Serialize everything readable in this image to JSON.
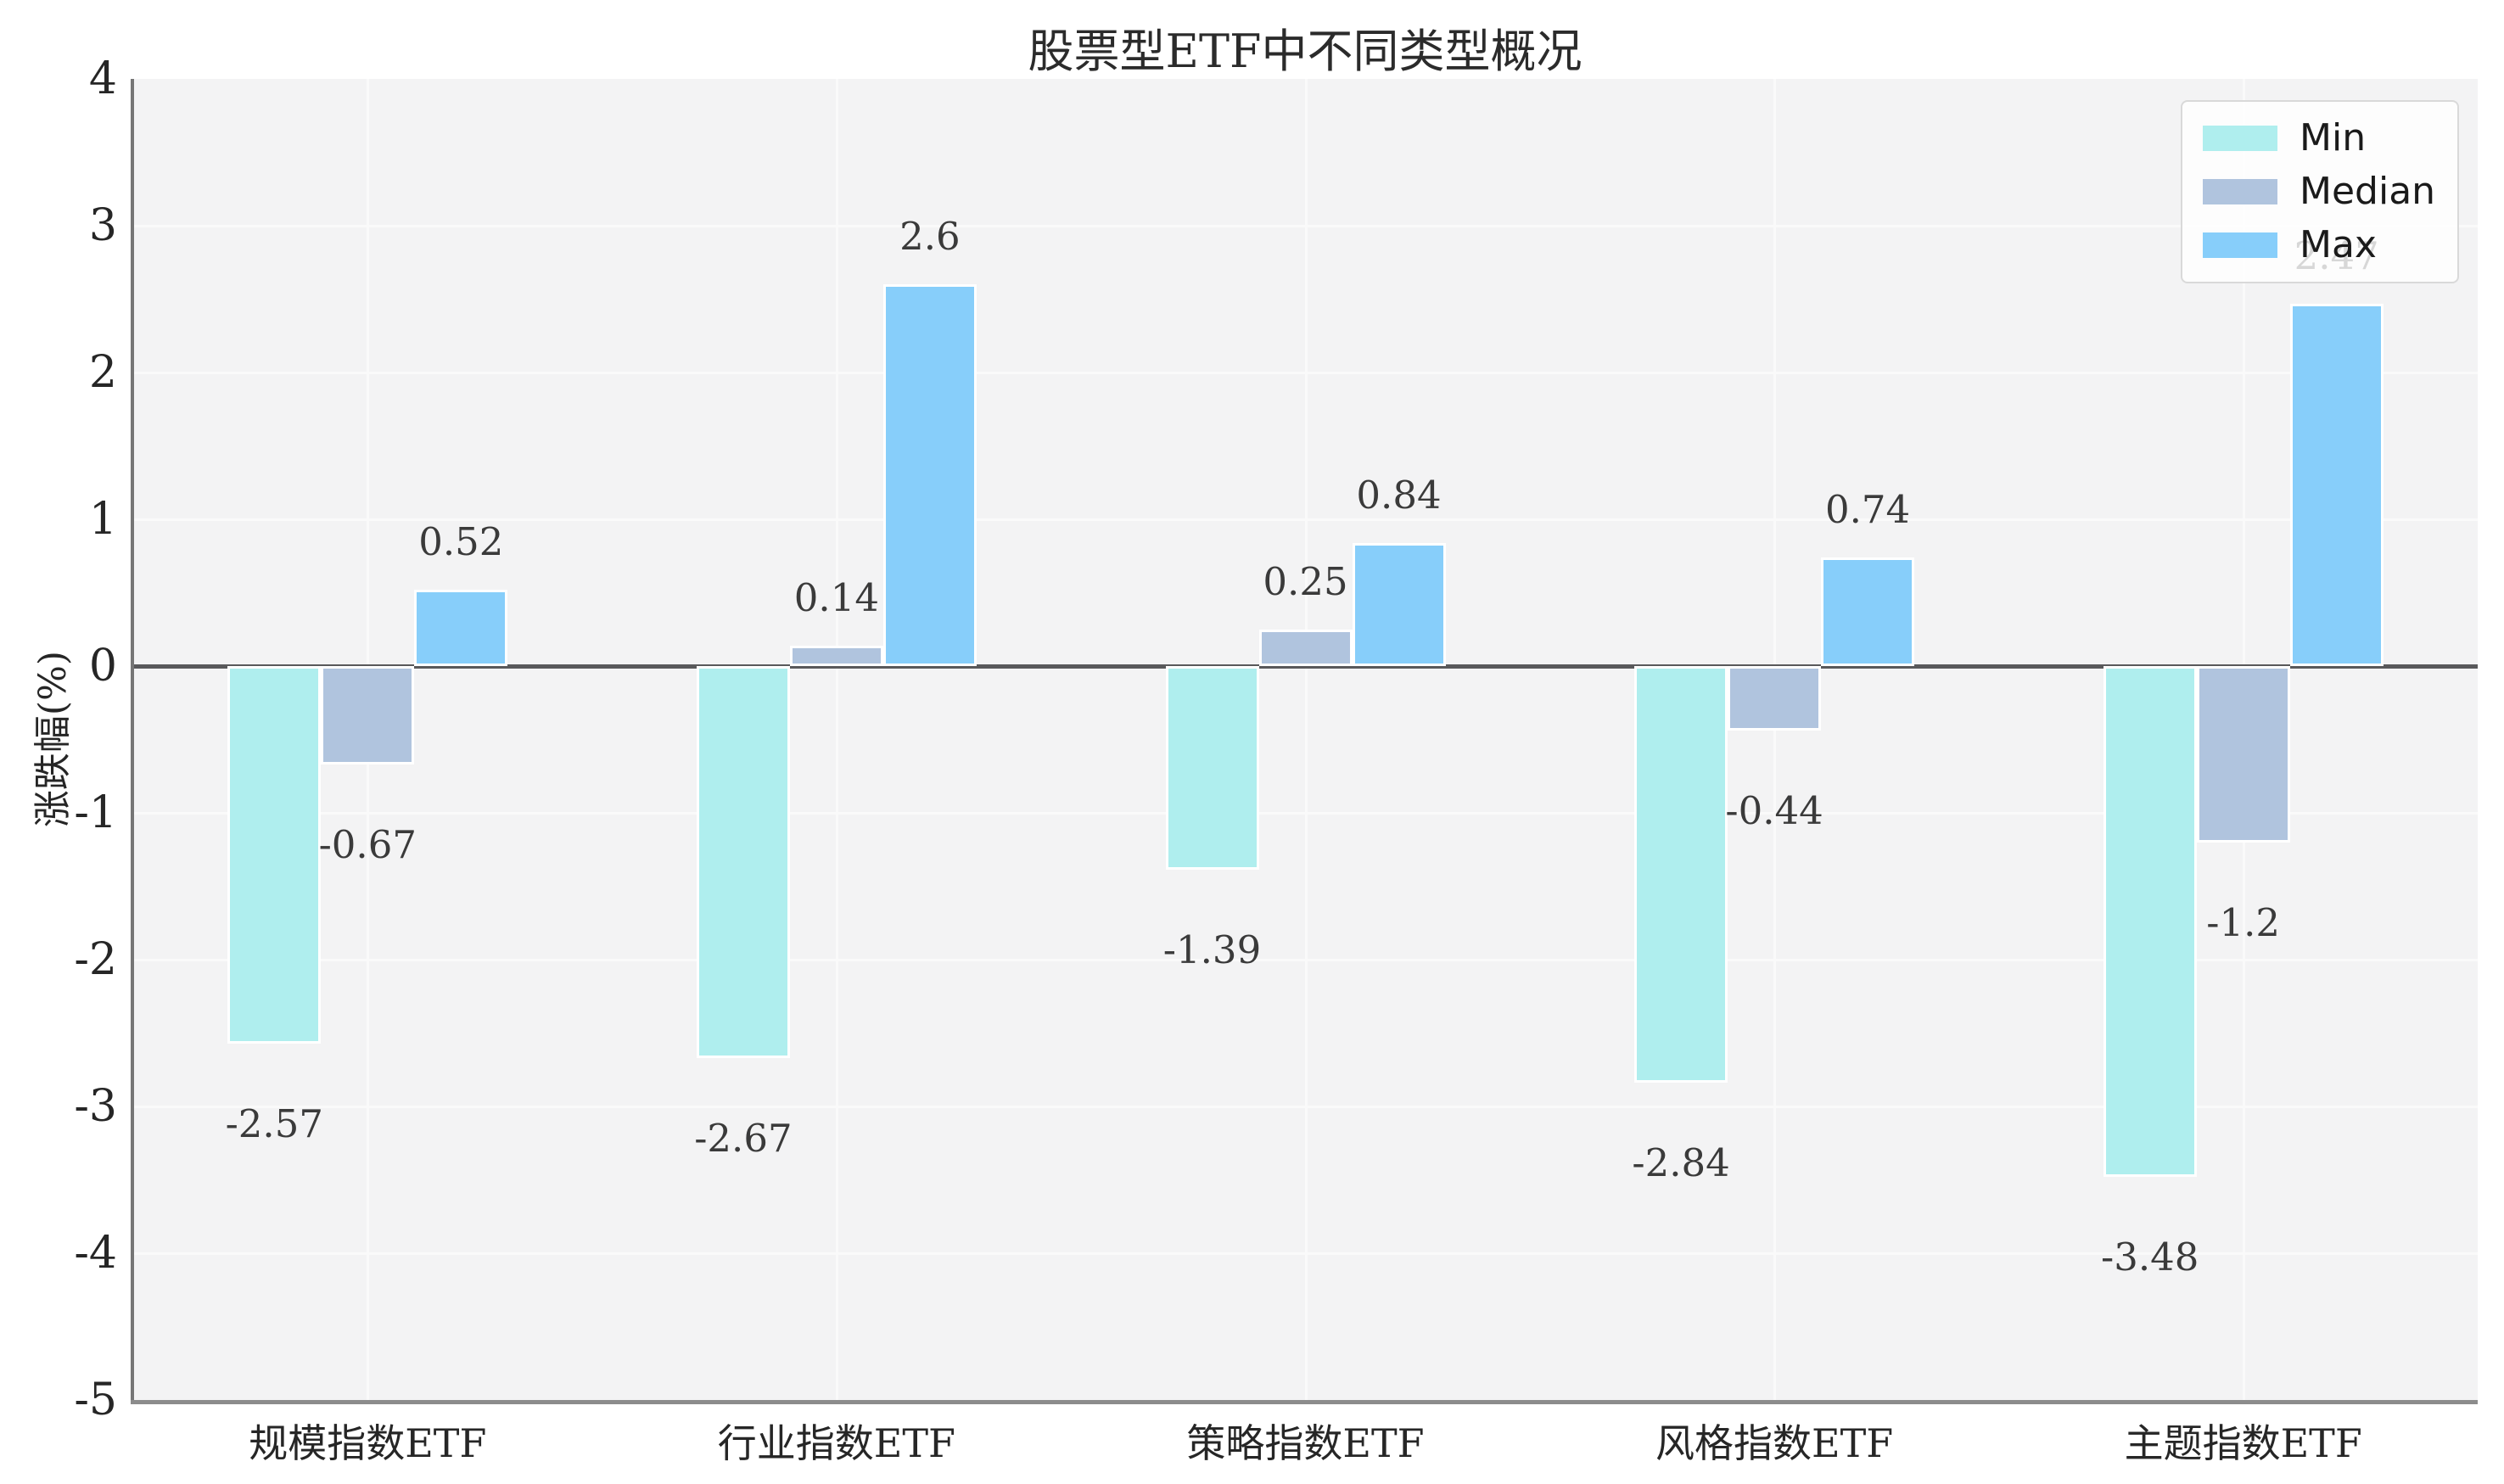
{
  "chart_data": {
    "type": "bar",
    "title": "股票型ETF中不同类型概况",
    "xlabel": "",
    "ylabel": "涨跌幅(%)",
    "categories": [
      "规模指数ETF",
      "行业指数ETF",
      "策略指数ETF",
      "风格指数ETF",
      "主题指数ETF"
    ],
    "series": [
      {
        "name": "Min",
        "color": "#AFEEEE",
        "values": [
          -2.57,
          -2.67,
          -1.39,
          -2.84,
          -3.48
        ],
        "labels": [
          "-2.57",
          "-2.67",
          "-1.39",
          "-2.84",
          "-3.48"
        ]
      },
      {
        "name": "Median",
        "color": "#B0C4DE",
        "values": [
          -0.67,
          0.14,
          0.25,
          -0.44,
          -1.2
        ],
        "labels": [
          "-0.67",
          "0.14",
          "0.25",
          "-0.44",
          "-1.2"
        ]
      },
      {
        "name": "Max",
        "color": "#87CEFA",
        "values": [
          0.52,
          2.6,
          0.84,
          0.74,
          2.47
        ],
        "labels": [
          "0.52",
          "2.6",
          "0.84",
          "0.74",
          "2.47"
        ]
      }
    ],
    "ylim": [
      -5,
      4
    ],
    "yticks": [
      "4",
      "3",
      "2",
      "1",
      "0",
      "-1",
      "-2",
      "-3",
      "-4",
      "-5"
    ],
    "grid": true,
    "zero_line": true,
    "legend": {
      "position": "upper right",
      "entries": [
        "Min",
        "Median",
        "Max"
      ]
    }
  },
  "style": {
    "figure_bg": "#ffffff",
    "plot_bg": "#f3f3f4",
    "grid_color": "#fafafa",
    "zero_line_color": "#59595b",
    "spine_color": "#767676",
    "tick_text_color": "#262626",
    "bar_label_color": "#3a3a3a",
    "bar_edge_color": "#ffffff",
    "legend_border_color": "#d9d9d9"
  }
}
